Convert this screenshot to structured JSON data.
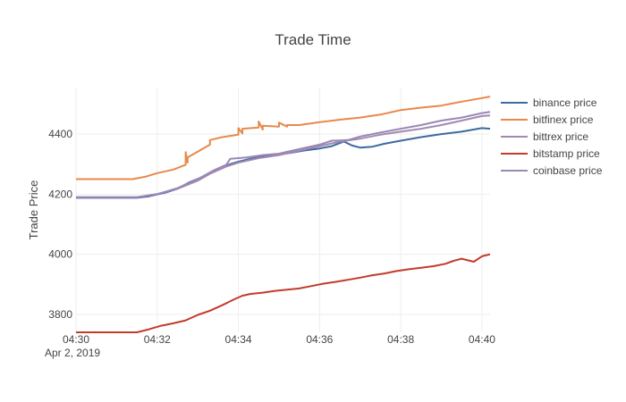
{
  "chart_data": {
    "type": "line",
    "title": "Trade Time",
    "xlabel": "",
    "ylabel": "Trade Price",
    "x_date_label": "Apr 2, 2019",
    "x_ticks": [
      "04:30",
      "04:32",
      "04:34",
      "04:36",
      "04:38",
      "04:40"
    ],
    "x_tick_minutes": [
      0,
      2,
      4,
      6,
      8,
      10
    ],
    "xlim": [
      0,
      10.2
    ],
    "y_ticks": [
      3800,
      4000,
      4200,
      4400
    ],
    "ylim": [
      3740,
      4555
    ],
    "grid": true,
    "legend_position": "right",
    "series": [
      {
        "name": "binance price",
        "color": "#3b6aa0",
        "width": 2.2,
        "x": [
          0,
          1.5,
          1.8,
          2.2,
          2.5,
          2.8,
          3.2,
          3.5,
          3.8,
          4.0,
          4.3,
          4.6,
          5.0,
          5.3,
          5.6,
          6.0,
          6.3,
          6.6,
          6.8,
          7.0,
          7.3,
          7.6,
          8.0,
          8.5,
          9.0,
          9.5,
          10.0,
          10.2
        ],
        "y": [
          4188,
          4188,
          4193,
          4205,
          4218,
          4240,
          4262,
          4285,
          4300,
          4308,
          4318,
          4325,
          4332,
          4338,
          4345,
          4352,
          4360,
          4375,
          4362,
          4355,
          4358,
          4368,
          4378,
          4390,
          4400,
          4408,
          4420,
          4418
        ]
      },
      {
        "name": "bitfinex price",
        "color": "#e8894a",
        "width": 2.2,
        "x": [
          0,
          1.4,
          1.7,
          2.0,
          2.4,
          2.7,
          2.7,
          2.75,
          2.75,
          3.3,
          3.3,
          3.6,
          4.0,
          4.0,
          4.1,
          4.1,
          4.5,
          4.5,
          4.6,
          4.6,
          5.0,
          5.0,
          5.2,
          5.2,
          5.5,
          6.0,
          6.5,
          7.0,
          7.5,
          8.0,
          8.5,
          9.0,
          9.5,
          10.0,
          10.2
        ],
        "y": [
          4250,
          4250,
          4258,
          4270,
          4282,
          4298,
          4340,
          4305,
          4322,
          4365,
          4380,
          4390,
          4398,
          4420,
          4402,
          4418,
          4422,
          4442,
          4415,
          4428,
          4425,
          4438,
          4425,
          4430,
          4430,
          4440,
          4448,
          4455,
          4465,
          4480,
          4488,
          4495,
          4508,
          4520,
          4525
        ]
      },
      {
        "name": "bittrex price",
        "color": "#a18ab0",
        "width": 1.5,
        "x": [
          0,
          1.5,
          2.0,
          2.5,
          3.0,
          3.3,
          3.7,
          4.0,
          4.5,
          5.0,
          5.5,
          6.0,
          6.5,
          7.0,
          7.5,
          8.0,
          8.5,
          9.0,
          9.5,
          10.0,
          10.2
        ],
        "y": [
          4190,
          4190,
          4200,
          4218,
          4245,
          4268,
          4292,
          4305,
          4320,
          4330,
          4345,
          4360,
          4375,
          4385,
          4398,
          4408,
          4418,
          4430,
          4445,
          4460,
          4462
        ]
      },
      {
        "name": "bitstamp price",
        "color": "#c23b2b",
        "width": 2.2,
        "x": [
          0,
          1.5,
          1.8,
          2.1,
          2.4,
          2.7,
          3.0,
          3.3,
          3.6,
          3.9,
          4.1,
          4.3,
          4.6,
          4.9,
          5.2,
          5.5,
          5.8,
          6.1,
          6.4,
          6.7,
          7.0,
          7.3,
          7.6,
          7.9,
          8.2,
          8.5,
          8.8,
          9.1,
          9.3,
          9.5,
          9.8,
          10.0,
          10.2
        ],
        "y": [
          3740,
          3740,
          3750,
          3762,
          3770,
          3780,
          3798,
          3812,
          3830,
          3850,
          3862,
          3868,
          3872,
          3878,
          3882,
          3886,
          3894,
          3902,
          3908,
          3915,
          3922,
          3930,
          3936,
          3944,
          3950,
          3955,
          3960,
          3968,
          3978,
          3985,
          3975,
          3993,
          4000
        ]
      },
      {
        "name": "coinbase price",
        "color": "#9a88b5",
        "width": 2.0,
        "x": [
          0,
          1.5,
          2.0,
          2.5,
          3.0,
          3.4,
          3.7,
          3.8,
          4.2,
          4.6,
          5.0,
          5.5,
          6.0,
          6.3,
          6.7,
          7.0,
          7.5,
          8.0,
          8.5,
          9.0,
          9.5,
          10.0,
          10.2
        ],
        "y": [
          4190,
          4190,
          4200,
          4220,
          4250,
          4280,
          4298,
          4318,
          4322,
          4330,
          4335,
          4350,
          4365,
          4378,
          4380,
          4392,
          4405,
          4418,
          4430,
          4445,
          4455,
          4470,
          4474
        ]
      }
    ]
  }
}
